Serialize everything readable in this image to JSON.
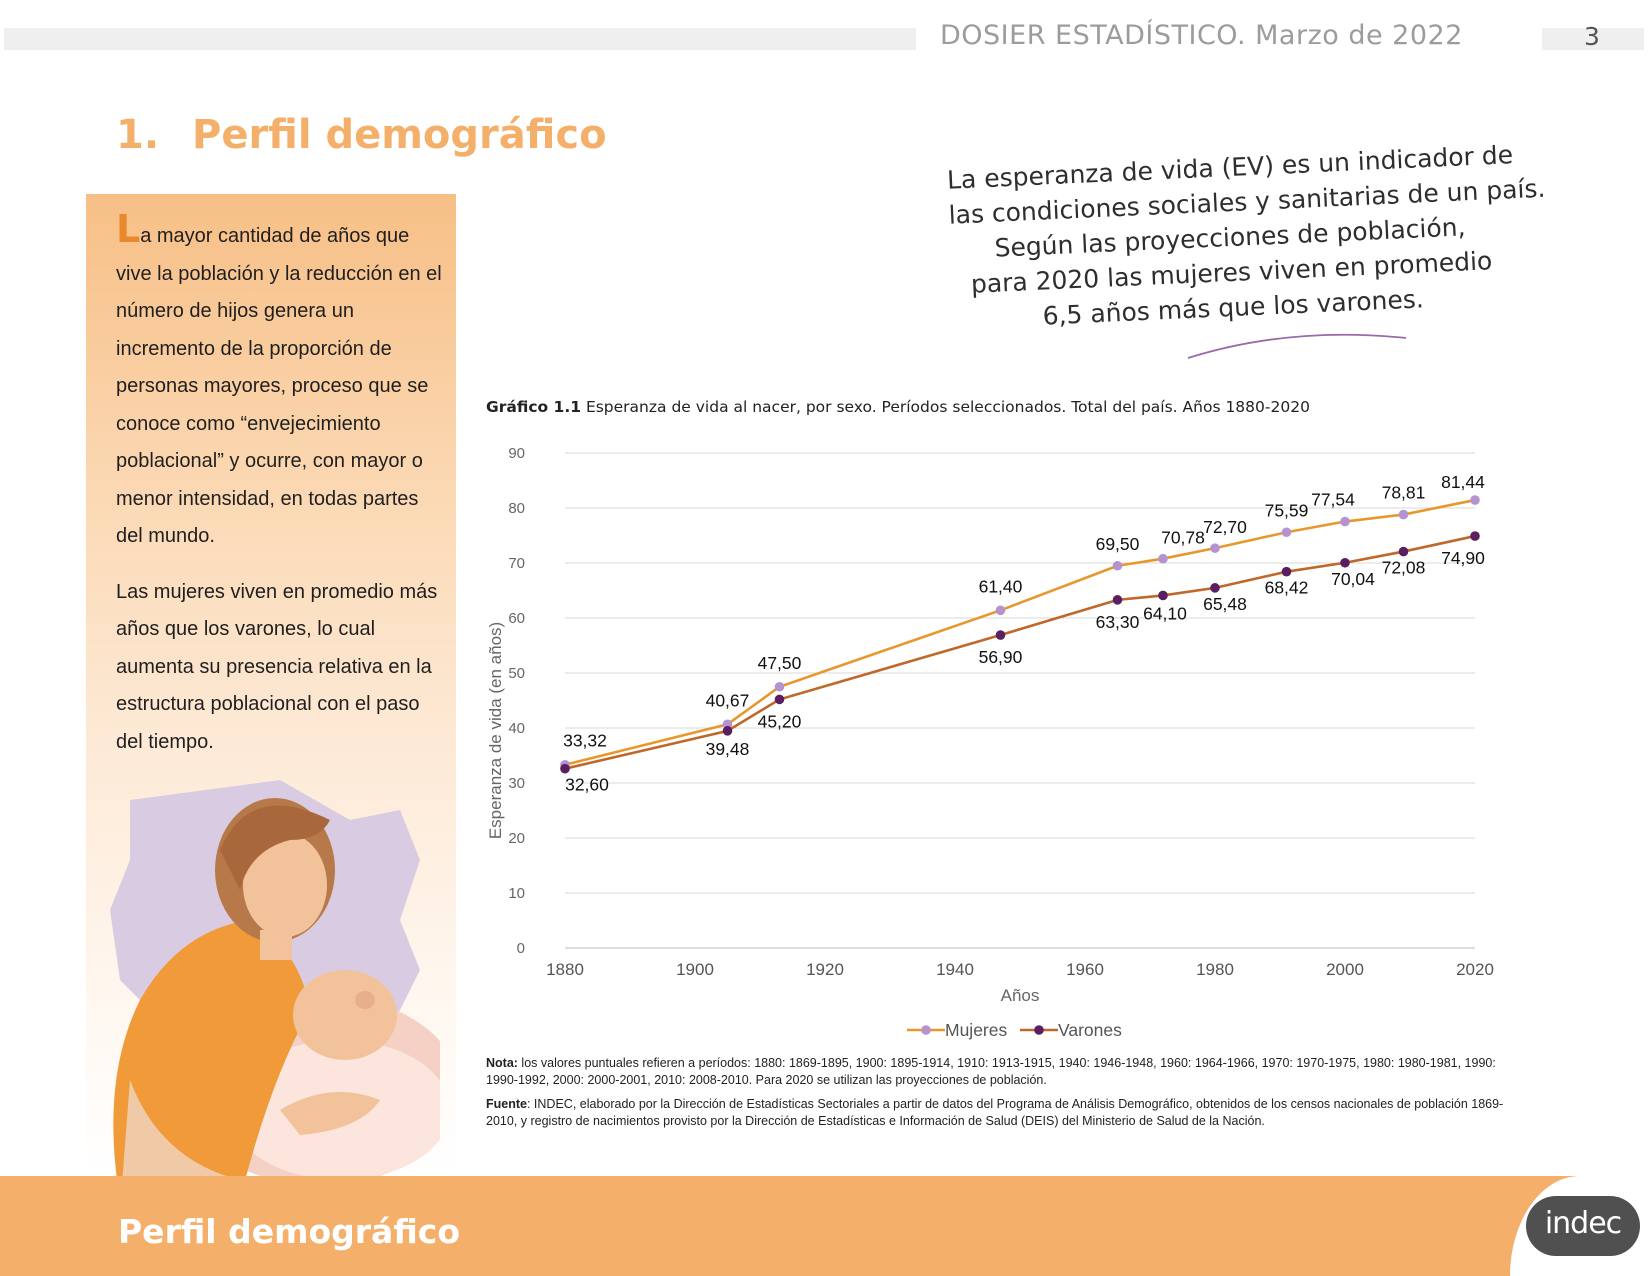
{
  "header": {
    "title": "DOSIER ESTADÍSTICO. Marzo de 2022",
    "page_number": "3"
  },
  "section": {
    "number": "1.",
    "title": "Perfil demográfico"
  },
  "panel": {
    "dropcap": "L",
    "paragraph1_rest": "a mayor cantidad de años que vive la población y la reducción en el número de hijos genera un incremento de la proporción de personas mayores, proceso que se conoce como “envejecimiento poblacional” y ocurre, con mayor o menor intensidad, en todas partes del mundo.",
    "paragraph2": "Las mujeres viven en promedio más años que los varones, lo cual aumenta su presencia relativa en la estructura poblacional con el paso del tiempo."
  },
  "quote": {
    "lines": [
      "La esperanza de vida (EV) es un indicador de",
      "las condiciones sociales y sanitarias de un país.",
      "Según las proyecciones de población,",
      "para 2020 las mujeres viven en promedio",
      "6,5 años más que los varones."
    ]
  },
  "chart_caption": {
    "label": "Gráfico 1.1",
    "text": " Esperanza de vida al nacer, por sexo. Períodos seleccionados. Total del país. Años 1880-2020"
  },
  "chart_data": {
    "type": "line",
    "xlabel": "Años",
    "ylabel": "Esperanza de vida (en años)",
    "xlim": [
      1880,
      2020
    ],
    "ylim": [
      0,
      90
    ],
    "xticks": [
      "1880",
      "1900",
      "1920",
      "1940",
      "1960",
      "1980",
      "2000",
      "2020"
    ],
    "yticks": [
      "0",
      "10",
      "20",
      "30",
      "40",
      "50",
      "60",
      "70",
      "80",
      "90"
    ],
    "grid": true,
    "legend_position": "bottom",
    "series": [
      {
        "name": "Mujeres",
        "color": "#e8972c",
        "marker_color": "#b593cf",
        "x": [
          1880,
          1905,
          1913,
          1947,
          1965,
          1972,
          1980,
          1991,
          2000,
          2009,
          2020
        ],
        "values": [
          33.32,
          40.67,
          47.5,
          61.4,
          69.5,
          70.78,
          72.7,
          75.59,
          77.54,
          78.81,
          81.44
        ],
        "labels": [
          "33,32",
          "40,67",
          "47,50",
          "61,40",
          "69,50",
          "70,78",
          "72,70",
          "75,59",
          "77,54",
          "78,81",
          "81,44"
        ]
      },
      {
        "name": "Varones",
        "color": "#c0682a",
        "marker_color": "#5a1f61",
        "x": [
          1880,
          1905,
          1913,
          1947,
          1965,
          1972,
          1980,
          1991,
          2000,
          2009,
          2020
        ],
        "values": [
          32.6,
          39.48,
          45.2,
          56.9,
          63.3,
          64.1,
          65.48,
          68.42,
          70.04,
          72.08,
          74.9
        ],
        "labels": [
          "32,60",
          "39,48",
          "45,20",
          "56,90",
          "63,30",
          "64,10",
          "65,48",
          "68,42",
          "70,04",
          "72,08",
          "74,90"
        ]
      }
    ]
  },
  "note": {
    "label": "Nota:",
    "text": " los valores puntuales refieren a períodos: 1880: 1869-1895, 1900: 1895-1914, 1910: 1913-1915, 1940: 1946-1948, 1960: 1964-1966, 1970: 1970-1975, 1980: 1980-1981, 1990: 1990-1992, 2000: 2000-2001, 2010: 2008-2010. Para 2020 se utilizan las proyecciones de población."
  },
  "source": {
    "label": "Fuente",
    "text": ": INDEC, elaborado por la Dirección de Estadísticas Sectoriales a partir de datos del Programa de Análisis Demográfico, obtenidos de los censos nacionales de población 1869-2010, y registro de nacimientos provisto por la Dirección de Estadísticas e Información de Salud (DEIS) del Ministerio de Salud de la Nación."
  },
  "footer": {
    "title": "Perfil demográfico",
    "logo_text": "indec"
  }
}
